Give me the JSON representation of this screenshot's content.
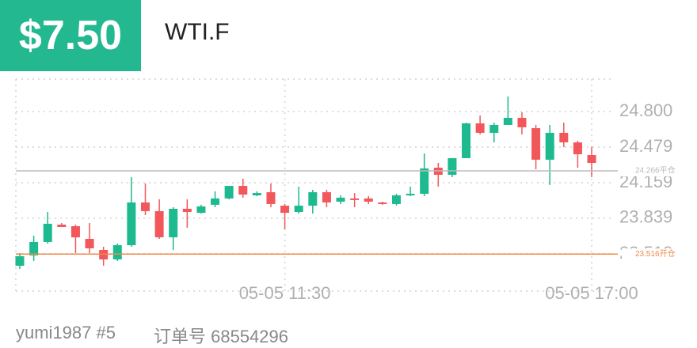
{
  "header": {
    "price": "$7.50",
    "symbol": "WTI.F"
  },
  "footer": {
    "user": "yumi1987 #5",
    "order": "订单号 68554296"
  },
  "chart_data": {
    "type": "candlestick",
    "categories": [
      null,
      null,
      null,
      null,
      null,
      null,
      null,
      null,
      null,
      null,
      null,
      null,
      null,
      null,
      null,
      null,
      null,
      null,
      null,
      "05-05 11:30",
      null,
      null,
      null,
      null,
      null,
      null,
      null,
      null,
      null,
      null,
      null,
      null,
      null,
      null,
      null,
      null,
      null,
      null,
      null,
      null,
      null,
      "05-05 17:00"
    ],
    "open": [
      23.411,
      23.504,
      23.625,
      23.781,
      23.767,
      23.653,
      23.553,
      23.468,
      23.596,
      23.981,
      23.903,
      23.667,
      23.924,
      23.888,
      23.96,
      24.017,
      24.13,
      24.045,
      24.073,
      23.952,
      23.895,
      23.952,
      24.073,
      23.988,
      24.017,
      24.017,
      23.981,
      23.967,
      24.052,
      24.059,
      24.294,
      24.23,
      24.38,
      24.693,
      24.608,
      24.679,
      24.743,
      24.65,
      24.366,
      24.608,
      24.522,
      24.408
    ],
    "high": [
      23.525,
      23.682,
      23.895,
      23.796,
      23.781,
      23.796,
      23.582,
      23.61,
      24.209,
      24.152,
      24.009,
      23.938,
      24.009,
      23.96,
      24.081,
      24.13,
      24.195,
      24.081,
      24.152,
      23.967,
      24.123,
      24.095,
      24.095,
      24.045,
      24.066,
      24.038,
      23.988,
      24.059,
      24.123,
      24.422,
      24.337,
      24.38,
      24.7,
      24.764,
      24.7,
      24.935,
      24.793,
      24.679,
      24.679,
      24.7,
      24.536,
      24.479
    ],
    "low": [
      23.383,
      23.454,
      23.61,
      23.76,
      23.525,
      23.525,
      23.411,
      23.454,
      23.582,
      23.867,
      23.653,
      23.553,
      23.753,
      23.881,
      23.938,
      24.009,
      24.024,
      24.038,
      23.938,
      23.739,
      23.881,
      23.881,
      23.938,
      23.967,
      23.938,
      23.967,
      23.96,
      23.952,
      24.038,
      24.038,
      24.123,
      24.209,
      24.38,
      24.593,
      24.522,
      24.679,
      24.593,
      24.28,
      24.138,
      24.479,
      24.294,
      24.209
    ],
    "close": [
      23.497,
      23.625,
      23.789,
      23.76,
      23.667,
      23.568,
      23.468,
      23.596,
      23.981,
      23.903,
      23.667,
      23.924,
      23.895,
      23.945,
      24.017,
      24.13,
      24.052,
      24.066,
      23.967,
      23.888,
      23.952,
      24.073,
      23.981,
      24.024,
      24.009,
      23.988,
      23.967,
      24.045,
      24.059,
      24.287,
      24.23,
      24.38,
      24.693,
      24.608,
      24.679,
      24.743,
      24.658,
      24.366,
      24.608,
      24.522,
      24.415,
      24.337
    ],
    "up_color": "#1db98f",
    "down_color": "#f2575c",
    "ylim": [
      23.183,
      25.092
    ],
    "yticks": [
      {
        "value": 24.8,
        "label": "24.800"
      },
      24.479,
      24.159,
      23.839,
      23.518
    ],
    "reference_lines": [
      {
        "value": 24.266,
        "label": "24.266平仓",
        "color": "#bbbbbb"
      },
      {
        "value": 23.516,
        "label": "23.516开仓",
        "color": "#f08a4b"
      }
    ],
    "grid": true
  }
}
